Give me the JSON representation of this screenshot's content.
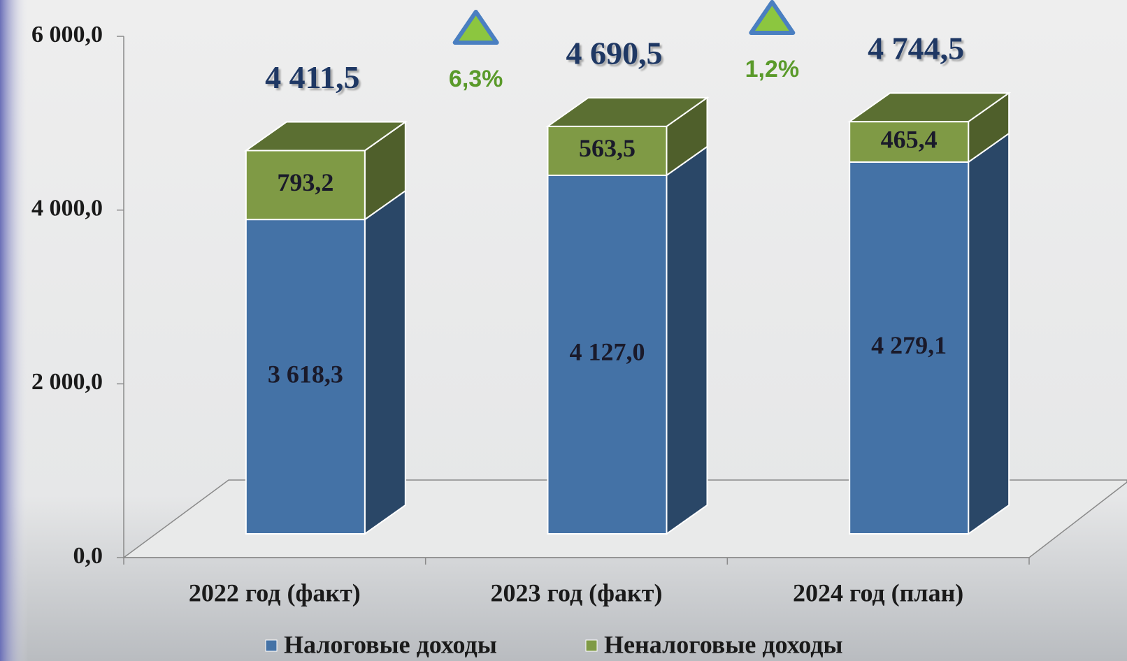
{
  "chart_data": {
    "type": "bar3d-stacked",
    "categories": [
      "2022 год (факт)",
      "2023 год (факт)",
      "2024 год (план)"
    ],
    "series": [
      {
        "name": "Налоговые доходы",
        "color": "#4472a6",
        "values": [
          3618.3,
          4127.0,
          4279.1
        ],
        "value_labels": [
          "3 618,3",
          "4 127,0",
          "4 279,1"
        ]
      },
      {
        "name": "Неналоговые доходы",
        "color": "#7f9a45",
        "values": [
          793.2,
          563.5,
          465.4
        ],
        "value_labels": [
          "793,2",
          "563,5",
          "465,4"
        ]
      }
    ],
    "totals": [
      4411.5,
      4690.5,
      4744.5
    ],
    "total_labels": [
      "4 411,5",
      "4 690,5",
      "4 744,5"
    ],
    "annotations": [
      "6,3%",
      "1,2%"
    ],
    "ylim": [
      0,
      6000
    ],
    "yticks": [
      {
        "value": 0,
        "label": "0,0"
      },
      {
        "value": 2000,
        "label": "2 000,0"
      },
      {
        "value": 4000,
        "label": "4 000,0"
      },
      {
        "value": 6000,
        "label": "6 000,0"
      }
    ]
  }
}
